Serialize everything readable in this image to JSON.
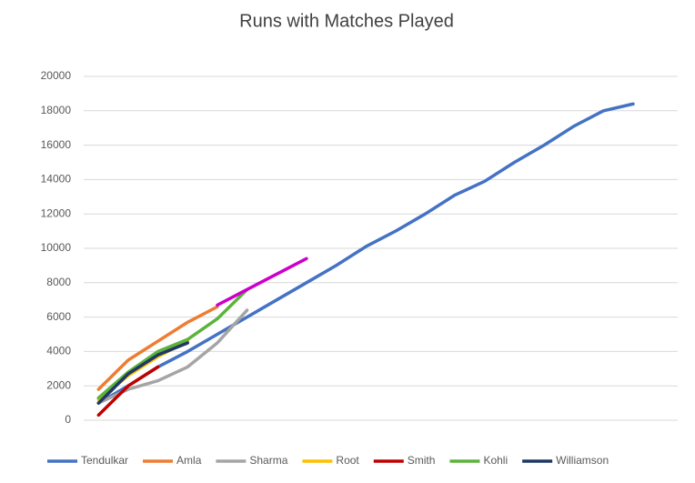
{
  "chart_data": {
    "type": "line",
    "title": "Runs with Matches Played",
    "categories": [
      null,
      null,
      null,
      null,
      null,
      null,
      null,
      null,
      null,
      null,
      null,
      null,
      null,
      null,
      null,
      null,
      null,
      null,
      null,
      null
    ],
    "ylim": [
      0,
      20000
    ],
    "yticks": [
      0,
      2000,
      4000,
      6000,
      8000,
      10000,
      12000,
      14000,
      16000,
      18000,
      20000
    ],
    "grid": true,
    "legend": "bottom",
    "series": [
      {
        "name": "Tendulkar",
        "color": "#4472c4",
        "values": [
          1000,
          2000,
          3100,
          4000,
          5000,
          6000,
          7000,
          8000,
          9000,
          10100,
          11000,
          12000,
          13100,
          13900,
          15000,
          16000,
          17100,
          18000,
          18400,
          null
        ]
      },
      {
        "name": "Amla",
        "color": "#ed7d31",
        "values": [
          1800,
          3500,
          4600,
          5700,
          6600,
          null,
          null,
          null,
          null,
          null,
          null,
          null,
          null,
          null,
          null,
          null,
          null,
          null,
          null,
          null
        ]
      },
      {
        "name": "Sharma",
        "color": "#a5a5a5",
        "values": [
          1000,
          1800,
          2300,
          3100,
          4500,
          6400,
          null,
          null,
          null,
          null,
          null,
          null,
          null,
          null,
          null,
          null,
          null,
          null,
          null,
          null
        ]
      },
      {
        "name": "Root",
        "color": "#ffc000",
        "values": [
          1200,
          2600,
          3700,
          4600,
          null,
          null,
          null,
          null,
          null,
          null,
          null,
          null,
          null,
          null,
          null,
          null,
          null,
          null,
          null,
          null
        ]
      },
      {
        "name": "Smith",
        "color": "#c00000",
        "values": [
          300,
          2000,
          3100,
          null,
          null,
          null,
          null,
          null,
          null,
          null,
          null,
          null,
          null,
          null,
          null,
          null,
          null,
          null,
          null,
          null
        ]
      },
      {
        "name": "Kohli",
        "color": "#5cb33c",
        "values": [
          1300,
          2800,
          4000,
          4700,
          5900,
          7600,
          null,
          null,
          null,
          null,
          null,
          null,
          null,
          null,
          null,
          null,
          null,
          null,
          null,
          null
        ]
      },
      {
        "name": "Williamson",
        "color": "#1f3864",
        "values": [
          1000,
          2700,
          3800,
          4500,
          null,
          null,
          null,
          null,
          null,
          null,
          null,
          null,
          null,
          null,
          null,
          null,
          null,
          null,
          null,
          null
        ]
      },
      {
        "name": null,
        "color": "#cc00cc",
        "values": [
          null,
          null,
          null,
          null,
          6700,
          7600,
          8500,
          9400,
          null,
          null,
          null,
          null,
          null,
          null,
          null,
          null,
          null,
          null,
          null,
          null
        ]
      }
    ]
  }
}
